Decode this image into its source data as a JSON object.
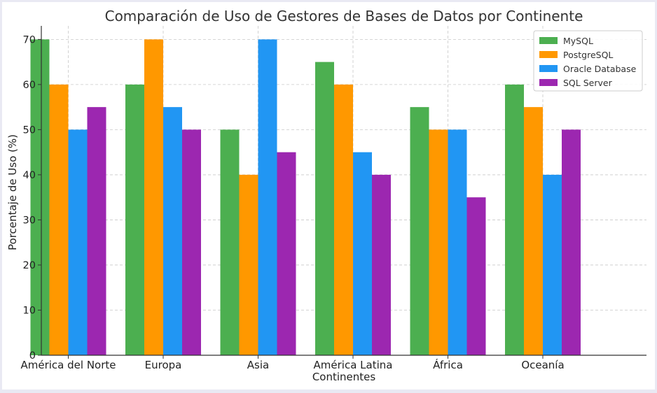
{
  "chart_data": {
    "type": "bar",
    "title": "Comparación de Uso de Gestores de Bases de Datos por Continente",
    "xlabel": "Continentes",
    "ylabel": "Porcentaje de Uso (%)",
    "categories": [
      "América del Norte",
      "Europa",
      "Asia",
      "América Latina",
      "África",
      "Oceanía"
    ],
    "series": [
      {
        "name": "MySQL",
        "color": "#4caf50",
        "values": [
          70,
          60,
          50,
          65,
          55,
          60
        ]
      },
      {
        "name": "PostgreSQL",
        "color": "#ff9800",
        "values": [
          60,
          70,
          40,
          60,
          50,
          55
        ]
      },
      {
        "name": "Oracle Database",
        "color": "#2196f3",
        "values": [
          50,
          55,
          70,
          45,
          50,
          40
        ]
      },
      {
        "name": "SQL Server",
        "color": "#9c27b0",
        "values": [
          55,
          50,
          45,
          40,
          35,
          50
        ]
      }
    ],
    "ylim": [
      0,
      73
    ],
    "yticks": [
      0,
      10,
      20,
      30,
      40,
      50,
      60,
      70
    ],
    "grid": true,
    "legend_position": "top-right"
  }
}
